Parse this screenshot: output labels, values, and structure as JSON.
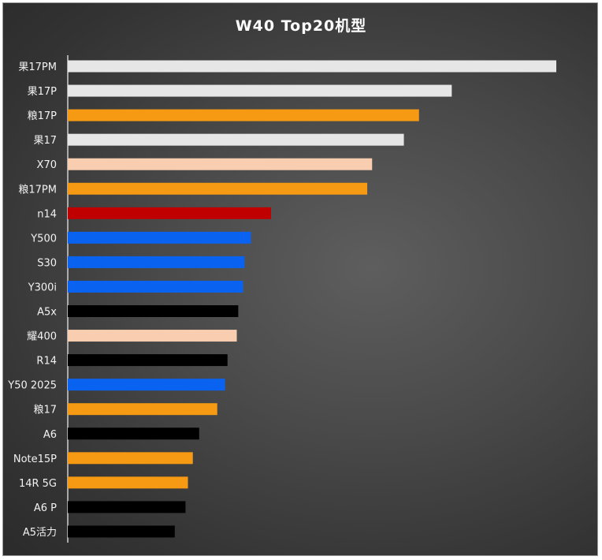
{
  "chart_data": {
    "type": "bar",
    "orientation": "horizontal",
    "title": "W40 Top20机型",
    "categories": [
      "果17PM",
      "果17P",
      "粮17P",
      "果17",
      "X70",
      "粮17PM",
      "n14",
      "Y500",
      "S30",
      "Y300i",
      "A5x",
      "耀400",
      "R14",
      "Y50 2025",
      "粮17",
      "A6",
      "Note15P",
      "14R 5G",
      "A6 P",
      "A5活力"
    ],
    "values": [
      100,
      78.6,
      71.9,
      68.8,
      62.3,
      61.3,
      41.6,
      37.5,
      36.2,
      35.9,
      34.9,
      34.6,
      32.7,
      32.2,
      30.6,
      26.9,
      25.6,
      24.6,
      24.1,
      21.9
    ],
    "colors": [
      "#e6e6e6",
      "#e6e6e6",
      "#f59a12",
      "#e6e6e6",
      "#f8cdb0",
      "#f59a12",
      "#c00000",
      "#0a63f0",
      "#0a63f0",
      "#0a63f0",
      "#000000",
      "#f8cdb0",
      "#000000",
      "#0a63f0",
      "#f59a12",
      "#000000",
      "#f59a12",
      "#f59a12",
      "#000000",
      "#000000"
    ],
    "xlim": [
      0,
      100
    ],
    "grid": false,
    "legend": "none"
  }
}
